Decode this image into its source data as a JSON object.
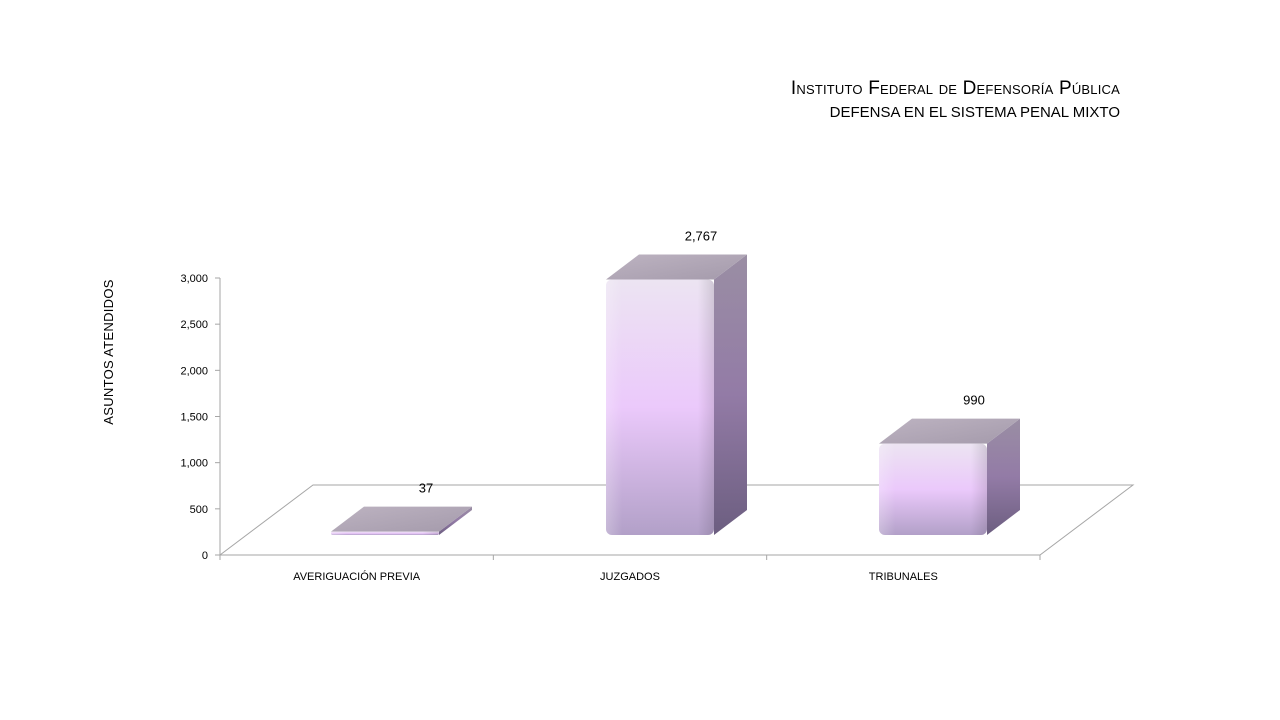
{
  "header": {
    "title": "Instituto Federal de Defensoría Pública",
    "subtitle": "DEFENSA EN EL SISTEMA PENAL MIXTO"
  },
  "chart_data": {
    "type": "bar",
    "style": "3d-column",
    "categories": [
      "AVERIGUACIÓN PREVIA",
      "JUZGADOS",
      "TRIBUNALES"
    ],
    "values": [
      37,
      2767,
      990
    ],
    "data_labels": [
      "37",
      "2,767",
      "990"
    ],
    "ylabel": "ASUNTOS ATENDIDOS",
    "xlabel": "",
    "ylim": [
      0,
      3000
    ],
    "yticks": [
      0,
      500,
      1000,
      1500,
      2000,
      2500,
      3000
    ],
    "ytick_labels": [
      "0",
      "500",
      "1,000",
      "1,500",
      "2,000",
      "2,500",
      "3,000"
    ],
    "grid": false,
    "legend": "none",
    "colors": {
      "front_mid": "#ebc9fb",
      "front_light": "#ece4f2",
      "front_dark": "#b2a0c8",
      "side": "#8c7a9e",
      "top": "#b4aab8",
      "axis": "#a6a6a6"
    }
  }
}
